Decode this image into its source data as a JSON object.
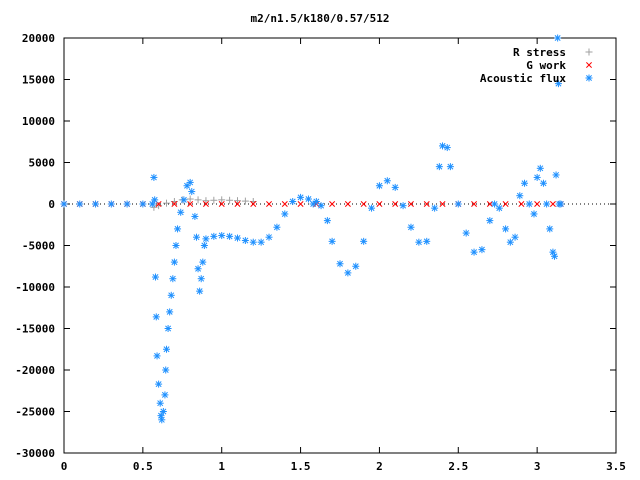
{
  "chart_data": {
    "type": "scatter",
    "title": "m2/n1.5/k180/0.57/512",
    "xlabel": "",
    "ylabel": "",
    "xlim": [
      0,
      3.5
    ],
    "ylim": [
      -30000,
      20000
    ],
    "x_ticks": [
      0,
      0.5,
      1,
      1.5,
      2,
      2.5,
      3,
      3.5
    ],
    "x_tick_labels": [
      "0",
      "0.5",
      "1",
      "1.5",
      "2",
      "2.5",
      "3",
      "3.5"
    ],
    "y_ticks": [
      -30000,
      -25000,
      -20000,
      -15000,
      -10000,
      -5000,
      0,
      5000,
      10000,
      15000,
      20000
    ],
    "y_tick_labels": [
      "-30000",
      "-25000",
      "-20000",
      "-15000",
      "-10000",
      "-5000",
      "0",
      "5000",
      "10000",
      "15000",
      "20000"
    ],
    "grid": false,
    "legend_position": "top-right",
    "series": [
      {
        "name": "R stress",
        "marker": "plus",
        "color": "#a0a0a0",
        "points": [
          [
            0.57,
            -400
          ],
          [
            0.6,
            -200
          ],
          [
            0.65,
            100
          ],
          [
            0.7,
            300
          ],
          [
            0.75,
            500
          ],
          [
            0.8,
            600
          ],
          [
            0.85,
            500
          ],
          [
            0.9,
            400
          ],
          [
            0.95,
            450
          ],
          [
            1.0,
            500
          ],
          [
            1.05,
            450
          ],
          [
            1.1,
            400
          ],
          [
            1.15,
            350
          ],
          [
            1.2,
            300
          ]
        ]
      },
      {
        "name": "G work",
        "marker": "cross",
        "color": "#ff0000",
        "points": [
          [
            0.0,
            0
          ],
          [
            0.1,
            0
          ],
          [
            0.2,
            0
          ],
          [
            0.3,
            0
          ],
          [
            0.4,
            0
          ],
          [
            0.5,
            0
          ],
          [
            0.6,
            0
          ],
          [
            0.7,
            0
          ],
          [
            0.8,
            0
          ],
          [
            0.9,
            0
          ],
          [
            1.0,
            0
          ],
          [
            1.1,
            0
          ],
          [
            1.2,
            0
          ],
          [
            1.3,
            0
          ],
          [
            1.4,
            0
          ],
          [
            1.5,
            0
          ],
          [
            1.6,
            0
          ],
          [
            1.7,
            0
          ],
          [
            1.8,
            0
          ],
          [
            1.9,
            0
          ],
          [
            2.0,
            0
          ],
          [
            2.1,
            0
          ],
          [
            2.2,
            0
          ],
          [
            2.3,
            0
          ],
          [
            2.4,
            0
          ],
          [
            2.5,
            0
          ],
          [
            2.6,
            0
          ],
          [
            2.7,
            0
          ],
          [
            2.8,
            0
          ],
          [
            2.9,
            0
          ],
          [
            3.0,
            0
          ],
          [
            3.1,
            0
          ],
          [
            3.15,
            0
          ]
        ]
      },
      {
        "name": "Acoustic flux",
        "marker": "star",
        "color": "#1e90ff",
        "points": [
          [
            0.0,
            0
          ],
          [
            0.1,
            0
          ],
          [
            0.2,
            0
          ],
          [
            0.3,
            0
          ],
          [
            0.4,
            0
          ],
          [
            0.5,
            0
          ],
          [
            0.56,
            0
          ],
          [
            0.57,
            3200
          ],
          [
            0.575,
            500
          ],
          [
            0.58,
            -8800
          ],
          [
            0.585,
            -13600
          ],
          [
            0.59,
            -18300
          ],
          [
            0.6,
            -21700
          ],
          [
            0.61,
            -24000
          ],
          [
            0.615,
            -25500
          ],
          [
            0.62,
            -26000
          ],
          [
            0.63,
            -25000
          ],
          [
            0.64,
            -23000
          ],
          [
            0.645,
            -20000
          ],
          [
            0.65,
            -17500
          ],
          [
            0.66,
            -15000
          ],
          [
            0.67,
            -13000
          ],
          [
            0.68,
            -11000
          ],
          [
            0.69,
            -9000
          ],
          [
            0.7,
            -7000
          ],
          [
            0.71,
            -5000
          ],
          [
            0.72,
            -3000
          ],
          [
            0.74,
            -1000
          ],
          [
            0.76,
            500
          ],
          [
            0.78,
            2200
          ],
          [
            0.8,
            2600
          ],
          [
            0.81,
            1500
          ],
          [
            0.83,
            -1500
          ],
          [
            0.84,
            -4000
          ],
          [
            0.85,
            -7800
          ],
          [
            0.86,
            -10500
          ],
          [
            0.87,
            -9000
          ],
          [
            0.88,
            -7000
          ],
          [
            0.89,
            -5000
          ],
          [
            0.9,
            -4200
          ],
          [
            0.95,
            -3900
          ],
          [
            1.0,
            -3800
          ],
          [
            1.05,
            -3900
          ],
          [
            1.1,
            -4100
          ],
          [
            1.15,
            -4400
          ],
          [
            1.2,
            -4600
          ],
          [
            1.25,
            -4600
          ],
          [
            1.3,
            -4000
          ],
          [
            1.35,
            -2800
          ],
          [
            1.4,
            -1200
          ],
          [
            1.45,
            300
          ],
          [
            1.5,
            800
          ],
          [
            1.55,
            600
          ],
          [
            1.58,
            0
          ],
          [
            1.6,
            300
          ],
          [
            1.63,
            -200
          ],
          [
            1.67,
            -2000
          ],
          [
            1.7,
            -4500
          ],
          [
            1.75,
            -7200
          ],
          [
            1.8,
            -8300
          ],
          [
            1.85,
            -7500
          ],
          [
            1.9,
            -4500
          ],
          [
            1.95,
            -500
          ],
          [
            2.0,
            2200
          ],
          [
            2.05,
            2800
          ],
          [
            2.1,
            2000
          ],
          [
            2.15,
            -200
          ],
          [
            2.2,
            -2800
          ],
          [
            2.25,
            -4600
          ],
          [
            2.3,
            -4500
          ],
          [
            2.35,
            -500
          ],
          [
            2.38,
            4500
          ],
          [
            2.4,
            7000
          ],
          [
            2.43,
            6800
          ],
          [
            2.45,
            4500
          ],
          [
            2.5,
            0
          ],
          [
            2.55,
            -3500
          ],
          [
            2.6,
            -5800
          ],
          [
            2.65,
            -5500
          ],
          [
            2.7,
            -2000
          ],
          [
            2.73,
            0
          ],
          [
            2.76,
            -500
          ],
          [
            2.8,
            -3000
          ],
          [
            2.83,
            -4600
          ],
          [
            2.86,
            -4000
          ],
          [
            2.89,
            1000
          ],
          [
            2.92,
            2500
          ],
          [
            2.95,
            0
          ],
          [
            2.98,
            -1200
          ],
          [
            3.0,
            3200
          ],
          [
            3.02,
            4300
          ],
          [
            3.04,
            2500
          ],
          [
            3.06,
            0
          ],
          [
            3.08,
            -3000
          ],
          [
            3.1,
            -5800
          ],
          [
            3.11,
            -6300
          ],
          [
            3.12,
            3500
          ],
          [
            3.13,
            20000
          ],
          [
            3.135,
            14500
          ],
          [
            3.14,
            0
          ],
          [
            3.15,
            0
          ]
        ]
      }
    ]
  }
}
